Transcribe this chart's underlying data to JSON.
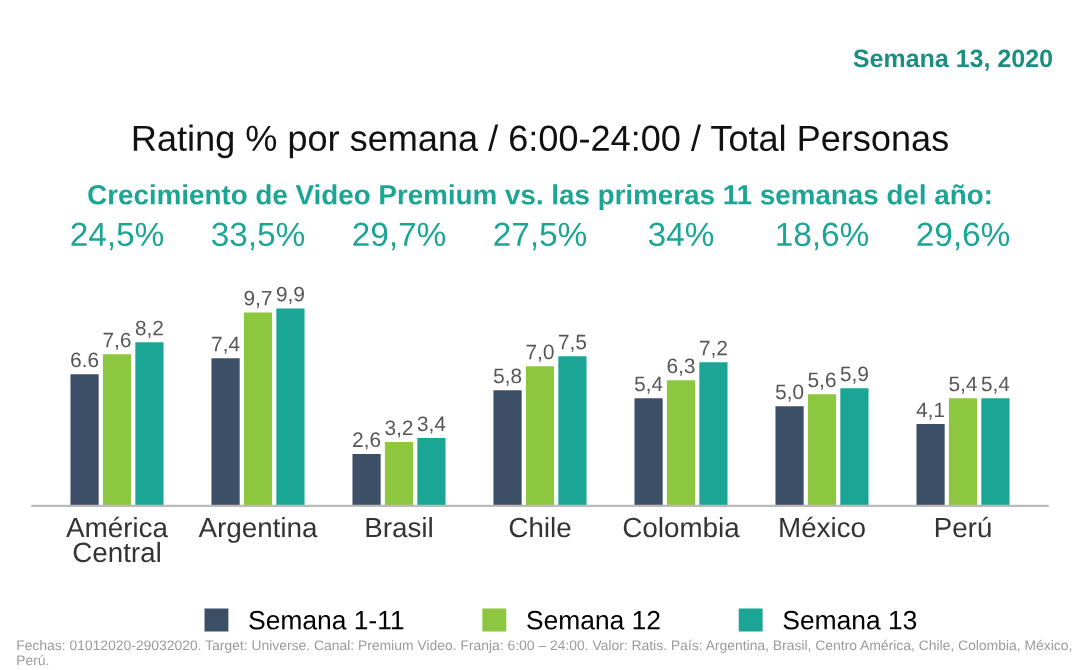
{
  "chart_data": {
    "type": "bar",
    "title": "Rating % por semana / 6:00-24:00 / Total Personas",
    "subtitle": "Crecimiento de Video Premium vs. las primeras 11 semanas del año:",
    "categories": [
      "América Central",
      "Argentina",
      "Brasil",
      "Chile",
      "Colombia",
      "México",
      "Perú"
    ],
    "series": [
      {
        "name": "Semana 1-11",
        "color": "#3d4f66",
        "values": [
          6.6,
          7.4,
          2.6,
          5.8,
          5.4,
          5.0,
          4.1
        ],
        "value_labels": [
          "6.6",
          "7,4",
          "2,6",
          "5,8",
          "5,4",
          "5,0",
          "4,1"
        ]
      },
      {
        "name": "Semana 12",
        "color": "#8dc63f",
        "values": [
          7.6,
          9.7,
          3.2,
          7.0,
          6.3,
          5.6,
          5.4
        ],
        "value_labels": [
          "7,6",
          "9,7",
          "3,2",
          "7,0",
          "6,3",
          "5,6",
          "5,4"
        ]
      },
      {
        "name": "Semana 13",
        "color": "#1aa595",
        "values": [
          8.2,
          9.9,
          3.4,
          7.5,
          7.2,
          5.9,
          5.4
        ],
        "value_labels": [
          "8,2",
          "9,9",
          "3,4",
          "7,5",
          "7,2",
          "5,9",
          "5,4"
        ]
      }
    ],
    "legend": "bottom",
    "grid": false,
    "annotations": [
      "24,5%",
      "33,5%",
      "29,7%",
      "27,5%",
      "34%",
      "18,6%",
      "29,6%",
      "Semana 13, 2020",
      "Fechas: 01012020-29032020. Target: Universe. Canal: Premium Video. Franja: 6:00 – 24:00. Valor: Ratis. País: Argentina, Brasil, Centro América, Chile, Colombia, México, Perú."
    ]
  }
}
